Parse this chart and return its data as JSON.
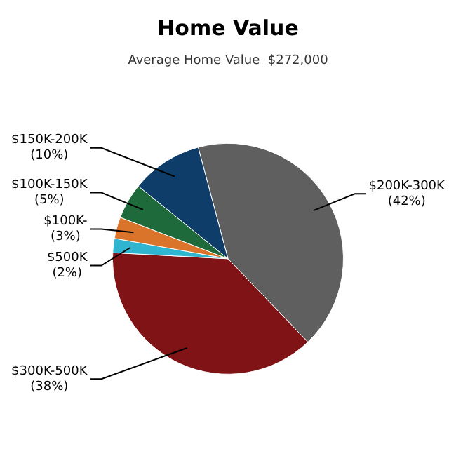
{
  "chart_data": {
    "type": "pie",
    "title": "Home Value",
    "subtitle": "Average Home Value  $272,000",
    "categories": [
      "$200K-300K",
      "$300K-500K",
      "$500K",
      "$100K-",
      "$100K-150K",
      "$150K-200K"
    ],
    "values": [
      42,
      38,
      2,
      3,
      5,
      10
    ],
    "colors": [
      "#5f5f5f",
      "#7f1315",
      "#2fb5d0",
      "#d9742a",
      "#1e6a3a",
      "#0d3d68"
    ],
    "value_labels": [
      "(42%)",
      "(38%)",
      "(2%)",
      "(3%)",
      "(5%)",
      "(10%)"
    ],
    "legend": false
  }
}
